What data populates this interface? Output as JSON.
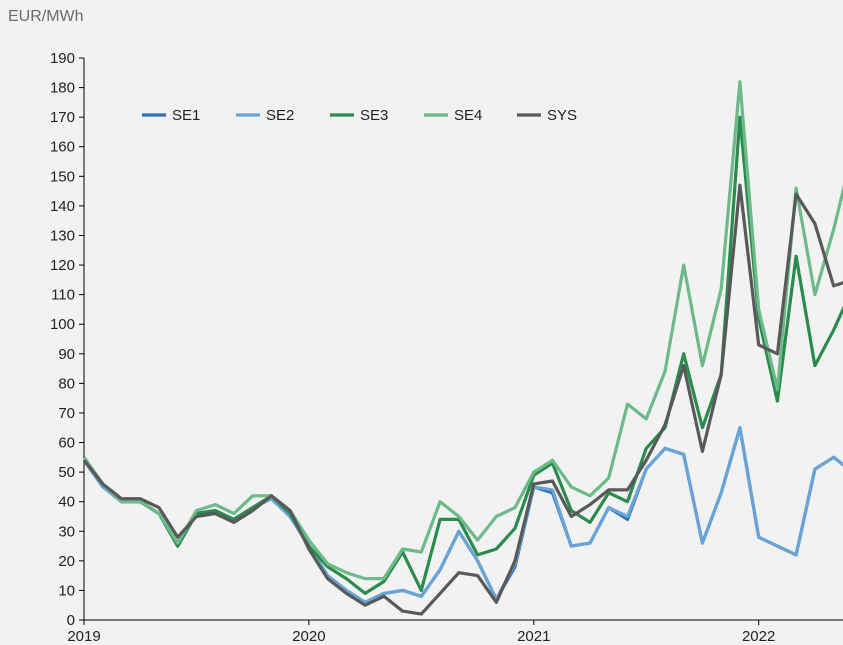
{
  "chart_data": {
    "type": "line",
    "ylabel": "EUR/MWh",
    "ylim": [
      0,
      190
    ],
    "yticks": [
      0,
      10,
      20,
      30,
      40,
      50,
      60,
      70,
      80,
      90,
      100,
      110,
      120,
      130,
      140,
      150,
      160,
      170,
      180,
      190
    ],
    "xlim": [
      2019.0,
      2022.375
    ],
    "xticks": [
      {
        "value": 2019,
        "label": "2019"
      },
      {
        "value": 2020,
        "label": "2020"
      },
      {
        "value": 2021,
        "label": "2021"
      },
      {
        "value": 2022,
        "label": "2022"
      }
    ],
    "grid": false,
    "legend_position": "top-left",
    "x_start": "2019-01",
    "series": [
      {
        "name": "SE1",
        "color": "#2e6fba",
        "values": [
          54,
          46,
          40,
          40,
          36,
          25,
          36,
          37,
          34,
          38,
          41,
          35,
          25,
          15,
          10,
          6,
          9,
          10,
          8,
          17,
          30,
          20,
          7,
          18,
          45,
          43,
          25,
          26,
          38,
          34,
          51,
          58,
          56,
          26,
          43,
          65,
          28,
          25,
          22,
          51,
          55,
          50
        ]
      },
      {
        "name": "SE2",
        "color": "#6aa4d6",
        "values": [
          54,
          45,
          40,
          40,
          36,
          25,
          36,
          37,
          34,
          38,
          41,
          35,
          25,
          15,
          10,
          6,
          9,
          10,
          8,
          17,
          30,
          20,
          7,
          19,
          45,
          44,
          25,
          26,
          38,
          35,
          51,
          58,
          56,
          26,
          43,
          65,
          28,
          25,
          22,
          51,
          55,
          50
        ]
      },
      {
        "name": "SE3",
        "color": "#2a8b4c",
        "values": [
          55,
          46,
          40,
          40,
          36,
          25,
          36,
          37,
          34,
          38,
          42,
          36,
          25,
          18,
          14,
          9,
          13,
          23,
          10,
          34,
          34,
          22,
          24,
          31,
          49,
          53,
          37,
          33,
          43,
          40,
          58,
          65,
          90,
          65,
          83,
          170,
          102,
          74,
          123,
          86,
          98,
          112
        ]
      },
      {
        "name": "SE4",
        "color": "#6cb98a",
        "values": [
          55,
          46,
          40,
          40,
          36,
          26,
          37,
          39,
          36,
          42,
          42,
          37,
          27,
          19,
          16,
          14,
          14,
          24,
          23,
          40,
          35,
          27,
          35,
          38,
          50,
          54,
          45,
          42,
          48,
          73,
          68,
          84,
          120,
          86,
          112,
          182,
          105,
          78,
          146,
          110,
          132,
          158
        ]
      },
      {
        "name": "SYS",
        "color": "#595959",
        "values": [
          54,
          46,
          41,
          41,
          38,
          28,
          35,
          36,
          33,
          37,
          42,
          37,
          24,
          14,
          9,
          5,
          8,
          3,
          2,
          9,
          16,
          15,
          6,
          20,
          46,
          47,
          35,
          39,
          44,
          44,
          54,
          66,
          86,
          57,
          83,
          147,
          93,
          90,
          144,
          134,
          113,
          115
        ]
      }
    ]
  }
}
